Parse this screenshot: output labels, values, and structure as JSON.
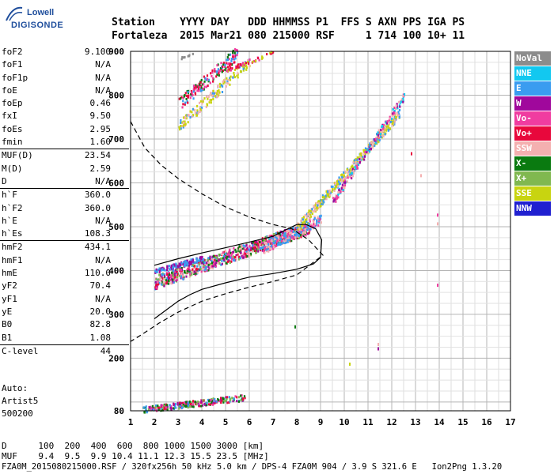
{
  "logo": {
    "line1": "Lowell",
    "line2": "DIGISONDE"
  },
  "header": {
    "keys": "Station    YYYY DAY   DDD HHMMSS P1  FFS S AXN PPS IGA PS",
    "values": "Fortaleza  2015 Mar21 080 215000 RSF     1 714 100 10+ 11"
  },
  "params": [
    {
      "k": "foF2",
      "v": "9.100"
    },
    {
      "k": "foF1",
      "v": "N/A"
    },
    {
      "k": "foF1p",
      "v": "N/A"
    },
    {
      "k": "foE",
      "v": "N/A"
    },
    {
      "k": "foEp",
      "v": "0.46"
    },
    {
      "k": "fxI",
      "v": "9.50"
    },
    {
      "k": "foEs",
      "v": "2.95"
    },
    {
      "k": "fmin",
      "v": "1.60"
    },
    {
      "k": "MUF(D)",
      "v": "23.54",
      "sep": true
    },
    {
      "k": "M(D)",
      "v": "2.59"
    },
    {
      "k": "D",
      "v": "N/A"
    },
    {
      "k": "h`F",
      "v": "360.0",
      "sep": true
    },
    {
      "k": "h`F2",
      "v": "360.0"
    },
    {
      "k": "h`E",
      "v": "N/A"
    },
    {
      "k": "h`Es",
      "v": "108.3"
    },
    {
      "k": "hmF2",
      "v": "434.1",
      "sep": true
    },
    {
      "k": "hmF1",
      "v": "N/A"
    },
    {
      "k": "hmE",
      "v": "110.0"
    },
    {
      "k": "yF2",
      "v": "70.4"
    },
    {
      "k": "yF1",
      "v": "N/A"
    },
    {
      "k": "yE",
      "v": "20.0"
    },
    {
      "k": "B0",
      "v": "82.8"
    },
    {
      "k": "B1",
      "v": "1.08"
    },
    {
      "k": "C-level",
      "v": "44",
      "sep": true
    }
  ],
  "auto": {
    "line1": "Auto:",
    "line2": "Artist5",
    "line3": "500200"
  },
  "legend": [
    {
      "label": "NoVal",
      "color": "#8c8c8c"
    },
    {
      "label": "NNE",
      "color": "#12c8f0"
    },
    {
      "label": "E",
      "color": "#3a9cf0"
    },
    {
      "label": "W",
      "color": "#a0089c"
    },
    {
      "label": "Vo-",
      "color": "#f03ca0"
    },
    {
      "label": "Vo+",
      "color": "#e8083c"
    },
    {
      "label": "SSW",
      "color": "#f4b0b0"
    },
    {
      "label": "X-",
      "color": "#0a7a10"
    },
    {
      "label": "X+",
      "color": "#80b850"
    },
    {
      "label": "SSE",
      "color": "#c8d410"
    },
    {
      "label": "NNW",
      "color": "#2020d0"
    }
  ],
  "footer": {
    "d_line": "D      100  200  400  600  800 1000 1500 3000 [km]",
    "muf_line": "MUF    9.4  9.5  9.9 10.4 11.1 12.3 15.5 23.5 [MHz]",
    "file_line": "FZA0M_2015080215000.RSF / 320fx256h 50 kHz 5.0 km / DPS-4 FZA0M 904 / 3.9 S 321.6 E   Ion2Png 1.3.20"
  },
  "chart_data": {
    "type": "scatter",
    "title": "",
    "xlabel": "",
    "ylabel": "",
    "xlim": [
      1,
      17
    ],
    "ylim": [
      80,
      900
    ],
    "x_ticks": [
      "1",
      "2",
      "3",
      "4",
      "5",
      "6",
      "7",
      "8",
      "9",
      "10",
      "11",
      "12",
      "13",
      "14",
      "15",
      "16",
      "17"
    ],
    "y_ticks": [
      "80",
      "200",
      "300",
      "400",
      "500",
      "600",
      "700",
      "800",
      "900"
    ],
    "grid": true,
    "series": [
      {
        "name": "",
        "kind": "dashed",
        "points": [
          [
            1.0,
            740
          ],
          [
            1.6,
            680
          ],
          [
            2.3,
            640
          ],
          [
            3.0,
            610
          ],
          [
            4.0,
            575
          ],
          [
            5.0,
            545
          ],
          [
            6.0,
            522
          ],
          [
            7.0,
            505
          ],
          [
            7.8,
            495
          ],
          [
            8.5,
            470
          ],
          [
            9.1,
            435
          ],
          [
            8.0,
            390
          ],
          [
            7.0,
            375
          ],
          [
            6.0,
            362
          ],
          [
            5.0,
            347
          ],
          [
            4.0,
            330
          ],
          [
            3.0,
            305
          ],
          [
            2.2,
            280
          ],
          [
            1.5,
            255
          ],
          [
            1.0,
            238
          ]
        ]
      },
      {
        "name": "",
        "kind": "solid",
        "points": [
          [
            2.0,
            290
          ],
          [
            2.5,
            310
          ],
          [
            3.0,
            330
          ],
          [
            3.5,
            345
          ],
          [
            4.0,
            357
          ],
          [
            5.0,
            372
          ],
          [
            6.0,
            385
          ],
          [
            7.0,
            393
          ],
          [
            8.0,
            403
          ],
          [
            8.7,
            415
          ],
          [
            9.0,
            430
          ],
          [
            9.05,
            470
          ],
          [
            8.8,
            495
          ],
          [
            8.4,
            505
          ],
          [
            8.0,
            505
          ],
          [
            7.5,
            492
          ],
          [
            7.0,
            478
          ],
          [
            6.0,
            465
          ],
          [
            5.0,
            452
          ],
          [
            4.0,
            440
          ],
          [
            3.0,
            427
          ],
          [
            2.0,
            412
          ]
        ]
      }
    ]
  }
}
